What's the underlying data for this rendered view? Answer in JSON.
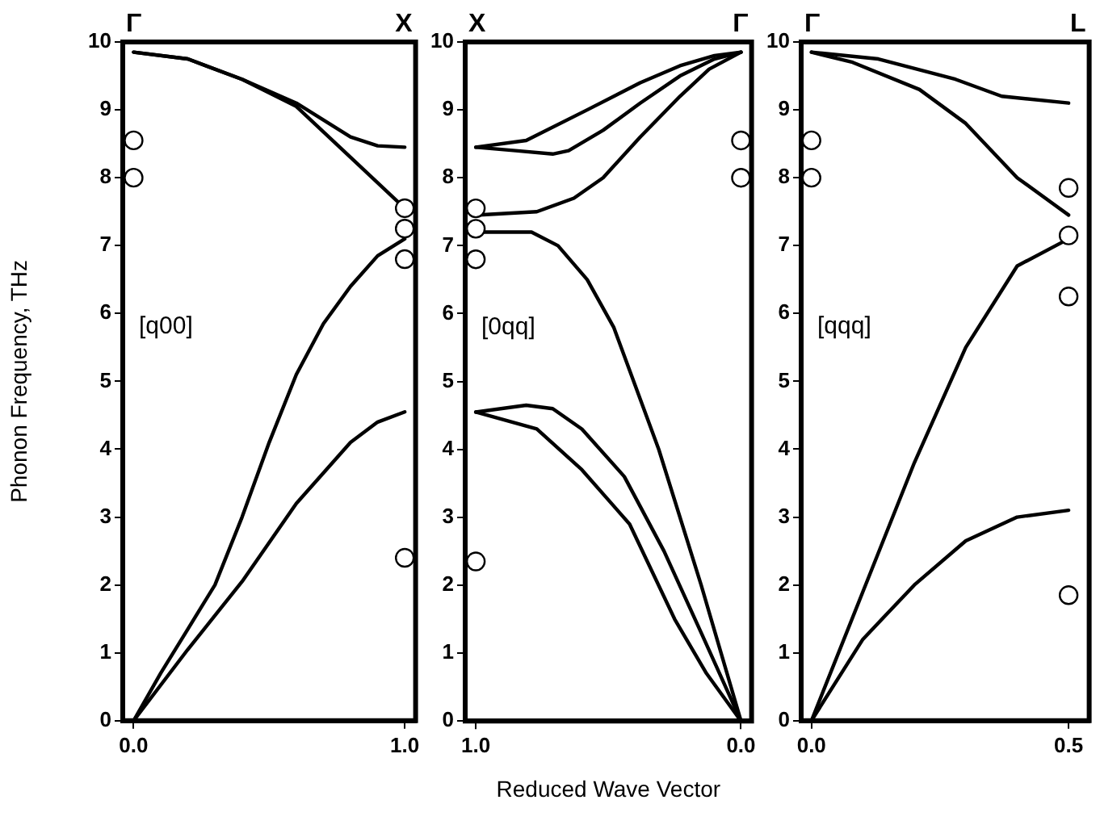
{
  "chart_data": [
    {
      "type": "line",
      "ylabel": "Phonon Frequency, THz",
      "xlim": [
        -0.04,
        1.04
      ],
      "xticks": [
        {
          "value": 0,
          "label": "0.0"
        },
        {
          "value": 1,
          "label": "1.0"
        }
      ],
      "ylim": [
        0,
        10
      ],
      "yticks": [
        0,
        1,
        2,
        3,
        4,
        5,
        6,
        7,
        8,
        9,
        10
      ],
      "grid": false,
      "legend": false,
      "marker": "none",
      "line_style": "solid",
      "annotations": [
        "Γ",
        "X",
        "[q00]"
      ],
      "series": [
        {
          "color": "#000000",
          "x": [
            0,
            0.1,
            0.2,
            0.3,
            0.4,
            0.5,
            0.6,
            0.7,
            0.8,
            0.9,
            1.0
          ],
          "values": [
            0,
            0.7,
            1.35,
            2.0,
            3.0,
            4.1,
            5.1,
            5.85,
            6.4,
            6.85,
            7.1
          ]
        },
        {
          "color": "#000000",
          "x": [
            0,
            0.2,
            0.4,
            0.6,
            0.8,
            0.9,
            1.0
          ],
          "values": [
            0,
            1.05,
            2.05,
            3.2,
            4.1,
            4.4,
            4.55
          ]
        },
        {
          "color": "#000000",
          "x": [
            0,
            0.2,
            0.4,
            0.6,
            0.8,
            1.0
          ],
          "values": [
            9.85,
            9.75,
            9.45,
            9.05,
            8.3,
            7.55
          ]
        },
        {
          "color": "#000000",
          "x": [
            0,
            0.2,
            0.4,
            0.6,
            0.8,
            0.9,
            1.0
          ],
          "values": [
            9.85,
            9.75,
            9.45,
            9.1,
            8.6,
            8.47,
            8.45
          ]
        },
        {
          "type": "scatter",
          "marker": "circle",
          "color": "#000000",
          "x": [
            0,
            0,
            1,
            1,
            1,
            1
          ],
          "values": [
            8.55,
            8.0,
            7.55,
            7.25,
            6.8,
            2.4
          ]
        }
      ]
    },
    {
      "type": "line",
      "xlabel": "Reduced Wave Vector",
      "xlim": [
        1.04,
        -0.04
      ],
      "xticks": [
        {
          "value": 1,
          "label": "1.0"
        },
        {
          "value": 0,
          "label": "0.0"
        }
      ],
      "ylim": [
        0,
        10
      ],
      "yticks": [
        0,
        1,
        2,
        3,
        4,
        5,
        6,
        7,
        8,
        9,
        10
      ],
      "grid": false,
      "legend": false,
      "marker": "none",
      "line_style": "solid",
      "annotations": [
        "X",
        "Γ",
        "[0qq]"
      ],
      "series": [
        {
          "color": "#000000",
          "x": [
            1.0,
            0.81,
            0.58,
            0.38,
            0.23,
            0.1,
            0
          ],
          "values": [
            8.45,
            8.55,
            9.0,
            9.4,
            9.65,
            9.8,
            9.85
          ]
        },
        {
          "color": "#000000",
          "x": [
            1.0,
            0.85,
            0.71,
            0.65,
            0.52,
            0.38,
            0.23,
            0.1,
            0
          ],
          "values": [
            8.45,
            8.4,
            8.35,
            8.4,
            8.7,
            9.1,
            9.5,
            9.75,
            9.85
          ]
        },
        {
          "color": "#000000",
          "x": [
            1.0,
            0.77,
            0.63,
            0.52,
            0.38,
            0.23,
            0.12,
            0
          ],
          "values": [
            7.45,
            7.5,
            7.7,
            8.0,
            8.6,
            9.2,
            9.6,
            9.85
          ]
        },
        {
          "color": "#000000",
          "x": [
            1.0,
            0.79,
            0.69,
            0.58,
            0.48,
            0.31,
            0.15,
            0
          ],
          "values": [
            7.2,
            7.2,
            7.0,
            6.5,
            5.8,
            4.0,
            2.0,
            0
          ]
        },
        {
          "color": "#000000",
          "x": [
            1.0,
            0.81,
            0.71,
            0.6,
            0.44,
            0.29,
            0.15,
            0
          ],
          "values": [
            4.55,
            4.65,
            4.6,
            4.3,
            3.6,
            2.5,
            1.3,
            0
          ]
        },
        {
          "color": "#000000",
          "x": [
            1.0,
            0.77,
            0.6,
            0.42,
            0.25,
            0.13,
            0
          ],
          "values": [
            4.55,
            4.3,
            3.7,
            2.9,
            1.5,
            0.7,
            0
          ]
        },
        {
          "type": "scatter",
          "marker": "circle",
          "color": "#000000",
          "x": [
            1,
            1,
            1,
            1,
            0,
            0
          ],
          "values": [
            7.55,
            7.25,
            6.8,
            2.35,
            8.55,
            8.0
          ]
        }
      ]
    },
    {
      "type": "line",
      "xlim": [
        -0.02,
        0.54
      ],
      "xticks": [
        {
          "value": 0,
          "label": "0.0"
        },
        {
          "value": 0.5,
          "label": "0.5"
        }
      ],
      "ylim": [
        0,
        10
      ],
      "yticks": [
        0,
        1,
        2,
        3,
        4,
        5,
        6,
        7,
        8,
        9,
        10
      ],
      "grid": false,
      "legend": false,
      "marker": "none",
      "line_style": "solid",
      "annotations": [
        "Γ",
        "L",
        "[qqq]"
      ],
      "series": [
        {
          "color": "#000000",
          "x": [
            0,
            0.08,
            0.21,
            0.3,
            0.4,
            0.5
          ],
          "values": [
            9.85,
            9.7,
            9.3,
            8.8,
            8.0,
            7.45
          ]
        },
        {
          "color": "#000000",
          "x": [
            0,
            0.13,
            0.28,
            0.37,
            0.5
          ],
          "values": [
            9.85,
            9.75,
            9.45,
            9.2,
            9.1
          ]
        },
        {
          "color": "#000000",
          "x": [
            0,
            0.1,
            0.2,
            0.3,
            0.4,
            0.5
          ],
          "values": [
            0,
            1.9,
            3.8,
            5.5,
            6.7,
            7.1
          ]
        },
        {
          "color": "#000000",
          "x": [
            0,
            0.1,
            0.2,
            0.3,
            0.4,
            0.5
          ],
          "values": [
            0,
            1.2,
            2.0,
            2.65,
            3.0,
            3.1
          ]
        },
        {
          "type": "scatter",
          "marker": "circle",
          "color": "#000000",
          "x": [
            0,
            0,
            0.5,
            0.5,
            0.5,
            0.5
          ],
          "values": [
            8.55,
            8.0,
            7.85,
            7.15,
            6.25,
            1.85
          ]
        }
      ]
    }
  ]
}
